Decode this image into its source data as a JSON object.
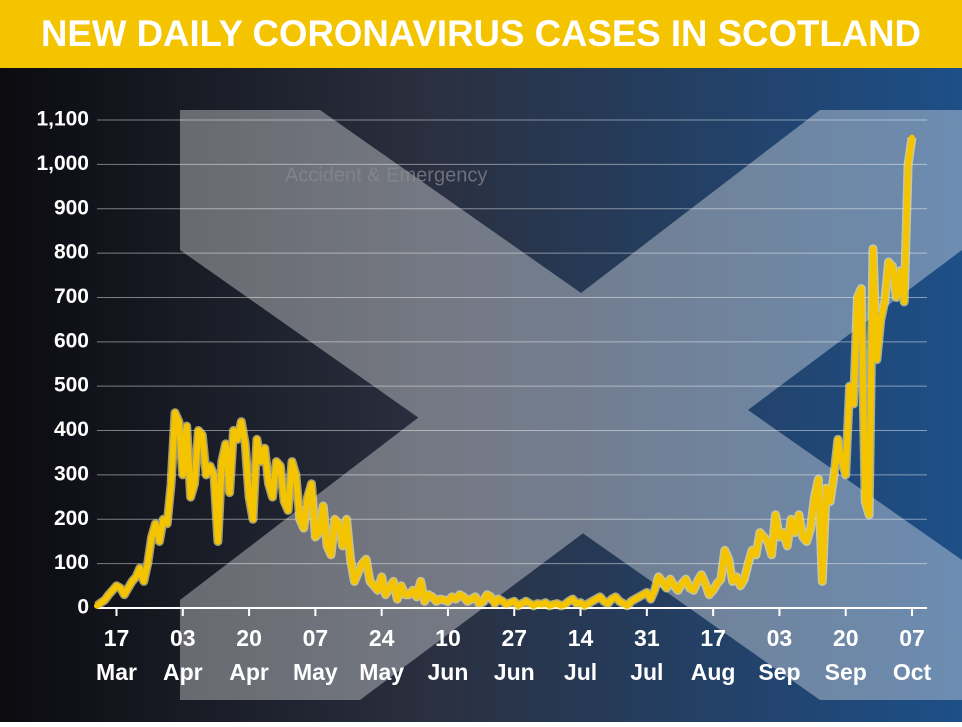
{
  "chart_data": {
    "type": "line",
    "title": "NEW DAILY CORONAVIRUS CASES IN SCOTLAND",
    "background_text": "Accident & Emergency",
    "categories": [
      null,
      null,
      null,
      null,
      null,
      "17 Mar",
      null,
      null,
      null,
      null,
      null,
      null,
      null,
      null,
      null,
      null,
      null,
      null,
      null,
      null,
      null,
      null,
      "03 Apr",
      null,
      null,
      null,
      null,
      null,
      null,
      null,
      null,
      null,
      null,
      null,
      null,
      null,
      null,
      null,
      null,
      "20 Apr",
      null,
      null,
      null,
      null,
      null,
      null,
      null,
      null,
      null,
      null,
      null,
      null,
      null,
      null,
      null,
      null,
      "07 May",
      null,
      null,
      null,
      null,
      null,
      null,
      null,
      null,
      null,
      null,
      null,
      null,
      null,
      null,
      null,
      null,
      "24 May",
      null,
      null,
      null,
      null,
      null,
      null,
      null,
      null,
      null,
      null,
      null,
      null,
      null,
      null,
      null,
      null,
      "10 Jun",
      null,
      null,
      null,
      null,
      null,
      null,
      null,
      null,
      null,
      null,
      null,
      null,
      null,
      null,
      null,
      null,
      "27 Jun",
      null,
      null,
      null,
      null,
      null,
      null,
      null,
      null,
      null,
      null,
      null,
      null,
      null,
      null,
      null,
      null,
      "14 Jul",
      null,
      null,
      null,
      null,
      null,
      null,
      null,
      null,
      null,
      null,
      null,
      null,
      null,
      null,
      null,
      null,
      "31 Jul",
      null,
      null,
      null,
      null,
      null,
      null,
      null,
      null,
      null,
      null,
      null,
      null,
      null,
      null,
      null,
      null,
      "17 Aug",
      null,
      null,
      null,
      null,
      null,
      null,
      null,
      null,
      null,
      null,
      null,
      null,
      null,
      null,
      null,
      null,
      "03 Sep",
      null,
      null,
      null,
      null,
      null,
      null,
      null,
      null,
      null,
      null,
      null,
      null,
      null,
      null,
      null,
      null,
      "20 Sep",
      null,
      null,
      null,
      null,
      null,
      null,
      null,
      null,
      null,
      null,
      null,
      null,
      null,
      null,
      null,
      null,
      "07 Oct"
    ],
    "values": [
      5,
      12,
      18,
      30,
      40,
      50,
      45,
      30,
      45,
      60,
      70,
      90,
      60,
      100,
      160,
      190,
      150,
      200,
      190,
      280,
      440,
      420,
      300,
      410,
      250,
      280,
      400,
      390,
      300,
      320,
      300,
      150,
      330,
      370,
      260,
      400,
      380,
      420,
      370,
      250,
      200,
      380,
      330,
      360,
      280,
      250,
      330,
      320,
      240,
      220,
      330,
      300,
      200,
      180,
      250,
      280,
      160,
      170,
      230,
      140,
      120,
      200,
      190,
      140,
      200,
      110,
      60,
      80,
      100,
      110,
      60,
      50,
      40,
      70,
      30,
      45,
      60,
      20,
      50,
      30,
      30,
      40,
      25,
      60,
      15,
      30,
      25,
      15,
      20,
      18,
      15,
      25,
      20,
      30,
      25,
      15,
      20,
      25,
      10,
      15,
      30,
      25,
      10,
      20,
      15,
      8,
      12,
      15,
      5,
      10,
      15,
      10,
      5,
      10,
      8,
      12,
      5,
      8,
      10,
      5,
      8,
      15,
      20,
      10,
      12,
      5,
      10,
      15,
      20,
      25,
      15,
      10,
      20,
      25,
      15,
      10,
      5,
      15,
      20,
      25,
      30,
      35,
      20,
      40,
      70,
      60,
      45,
      65,
      50,
      40,
      55,
      65,
      45,
      40,
      60,
      75,
      55,
      30,
      40,
      55,
      65,
      130,
      110,
      60,
      70,
      50,
      65,
      100,
      130,
      120,
      170,
      160,
      150,
      120,
      210,
      160,
      170,
      140,
      200,
      170,
      210,
      160,
      150,
      180,
      250,
      290,
      60,
      270,
      240,
      300,
      380,
      330,
      300,
      500,
      460,
      700,
      720,
      240,
      210,
      810,
      560,
      650,
      690,
      780,
      770,
      700,
      760,
      690,
      1000,
      1060
    ],
    "color": "#f5c400",
    "ylim": [
      0,
      1100
    ],
    "yticks": [
      0,
      100,
      200,
      300,
      400,
      500,
      600,
      700,
      800,
      900,
      {
        "value": 1000,
        "label": "1,000"
      },
      {
        "value": 1100,
        "label": "1,100"
      }
    ],
    "grid": true
  }
}
